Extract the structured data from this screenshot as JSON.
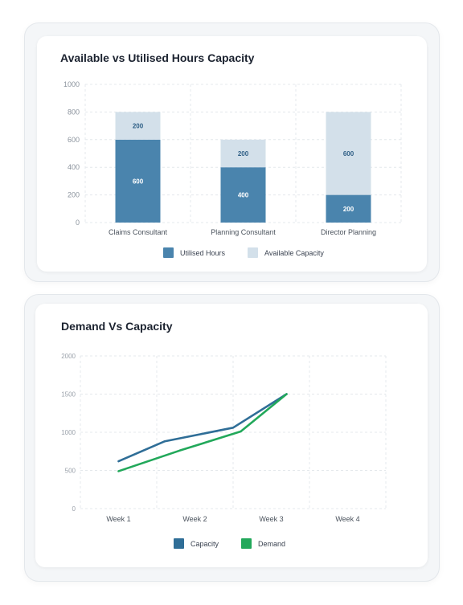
{
  "chart_data": [
    {
      "type": "bar",
      "stacked": true,
      "title": "Available vs Utilised Hours Capacity",
      "categories": [
        "Claims Consultant",
        "Planning Consultant",
        "Director Planning"
      ],
      "series": [
        {
          "name": "Utilised Hours",
          "values": [
            600,
            400,
            200
          ],
          "color": "#4a84ad"
        },
        {
          "name": "Available Capacity",
          "values": [
            200,
            200,
            600
          ],
          "color": "#d3e0ea"
        }
      ],
      "ylim": [
        0,
        1000
      ],
      "yticks": [
        0,
        200,
        400,
        600,
        800,
        1000
      ],
      "grid": true,
      "legend": "bottom"
    },
    {
      "type": "line",
      "title": "Demand Vs Capacity",
      "categories": [
        "Week 1",
        "Week 2",
        "Week 3",
        "Week 4"
      ],
      "series": [
        {
          "name": "Capacity",
          "color": "#2f6e97",
          "points": [
            [
              1,
              620
            ],
            [
              1.6,
              880
            ],
            [
              2.5,
              1060
            ],
            [
              3.2,
              1500
            ]
          ]
        },
        {
          "name": "Demand",
          "color": "#22a85a",
          "points": [
            [
              1,
              490
            ],
            [
              1.8,
              760
            ],
            [
              2.6,
              1010
            ],
            [
              3.2,
              1500
            ]
          ]
        }
      ],
      "ylim": [
        0,
        2000
      ],
      "yticks": [
        0,
        500,
        1000,
        1500,
        2000
      ],
      "grid": true,
      "legend": "bottom"
    }
  ]
}
